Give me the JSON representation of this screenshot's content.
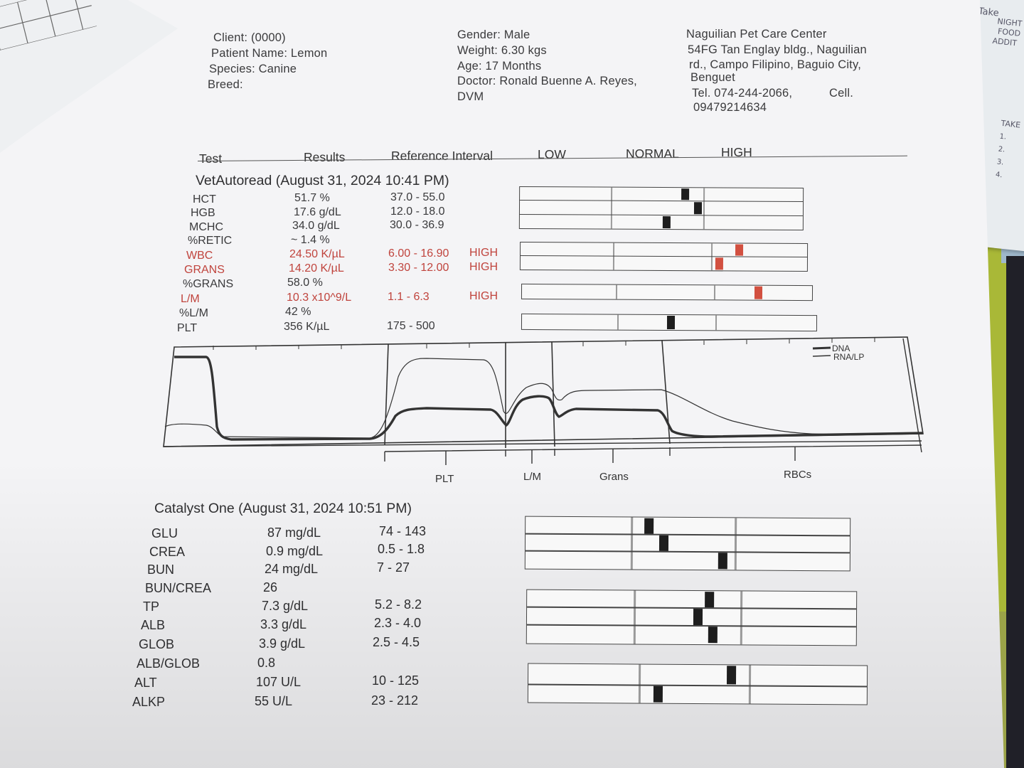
{
  "header": {
    "client": "Client:  (0000)",
    "patient_name": "Patient Name: Lemon",
    "species": "Species: Canine",
    "breed": "Breed:",
    "gender": "Gender: Male",
    "weight": "Weight: 6.30 kgs",
    "age": "Age: 17 Months",
    "doctor_line1": "Doctor: Ronald Buenne A. Reyes,",
    "doctor_line2": "DVM",
    "clinic_name": "Naguilian Pet Care Center",
    "clinic_addr1": "54FG Tan Englay bldg., Naguilian",
    "clinic_addr2": "rd., Campo Filipino, Baguio City,",
    "clinic_addr3": "Benguet",
    "clinic_tel": "Tel. 074-244-2066,",
    "clinic_cell_label": "Cell.",
    "clinic_cell": "09479214634"
  },
  "columns": {
    "test": "Test",
    "results": "Results",
    "reference": "Reference Interval",
    "low": "LOW",
    "normal": "NORMAL",
    "high": "HIGH"
  },
  "vetautoread": {
    "title": "VetAutoread (August 31, 2024 10:41 PM)",
    "rows": [
      {
        "test": "HCT",
        "result": "51.7 %",
        "ref": "37.0 - 55.0",
        "flag": ""
      },
      {
        "test": "HGB",
        "result": "17.6 g/dL",
        "ref": "12.0 - 18.0",
        "flag": ""
      },
      {
        "test": "MCHC",
        "result": "34.0 g/dL",
        "ref": "30.0 - 36.9",
        "flag": ""
      },
      {
        "test": "%RETIC",
        "result": "~ 1.4 %",
        "ref": "",
        "flag": ""
      },
      {
        "test": "WBC",
        "result": "24.50 K/µL",
        "ref": "6.00 - 16.90",
        "flag": "HIGH"
      },
      {
        "test": "GRANS",
        "result": "14.20 K/µL",
        "ref": "3.30 - 12.00",
        "flag": "HIGH"
      },
      {
        "test": "%GRANS",
        "result": "58.0 %",
        "ref": "",
        "flag": ""
      },
      {
        "test": "L/M",
        "result": "10.3 x10^9/L",
        "ref": "1.1 - 6.3",
        "flag": "HIGH"
      },
      {
        "test": "%L/M",
        "result": "42 %",
        "ref": "",
        "flag": ""
      },
      {
        "test": "PLT",
        "result": "356 K/µL",
        "ref": "175 - 500",
        "flag": ""
      }
    ]
  },
  "histogram": {
    "legend": [
      "DNA",
      "RNA/LP"
    ],
    "regions": [
      "PLT",
      "L/M",
      "Grans",
      "RBCs"
    ]
  },
  "catalyst": {
    "title": "Catalyst One (August 31, 2024 10:51 PM)",
    "rows": [
      {
        "test": "GLU",
        "result": "87 mg/dL",
        "ref": "74 - 143"
      },
      {
        "test": "CREA",
        "result": "0.9 mg/dL",
        "ref": "0.5 - 1.8"
      },
      {
        "test": "BUN",
        "result": "24 mg/dL",
        "ref": "7 - 27"
      },
      {
        "test": "BUN/CREA",
        "result": "26",
        "ref": ""
      },
      {
        "test": "TP",
        "result": "7.3 g/dL",
        "ref": "5.2 - 8.2"
      },
      {
        "test": "ALB",
        "result": "3.3 g/dL",
        "ref": "2.3 - 4.0"
      },
      {
        "test": "GLOB",
        "result": "3.9 g/dL",
        "ref": "2.5 - 4.5"
      },
      {
        "test": "ALB/GLOB",
        "result": "0.8",
        "ref": ""
      },
      {
        "test": "ALT",
        "result": "107 U/L",
        "ref": "10 - 125"
      },
      {
        "test": "ALKP",
        "result": "55 U/L",
        "ref": "23 - 212"
      }
    ]
  },
  "side_paper": {
    "lines": [
      "Take",
      "NIGHT",
      "FOOD",
      "ADDIT",
      "TAKE",
      "1.",
      "2.",
      "3.",
      "4."
    ]
  }
}
